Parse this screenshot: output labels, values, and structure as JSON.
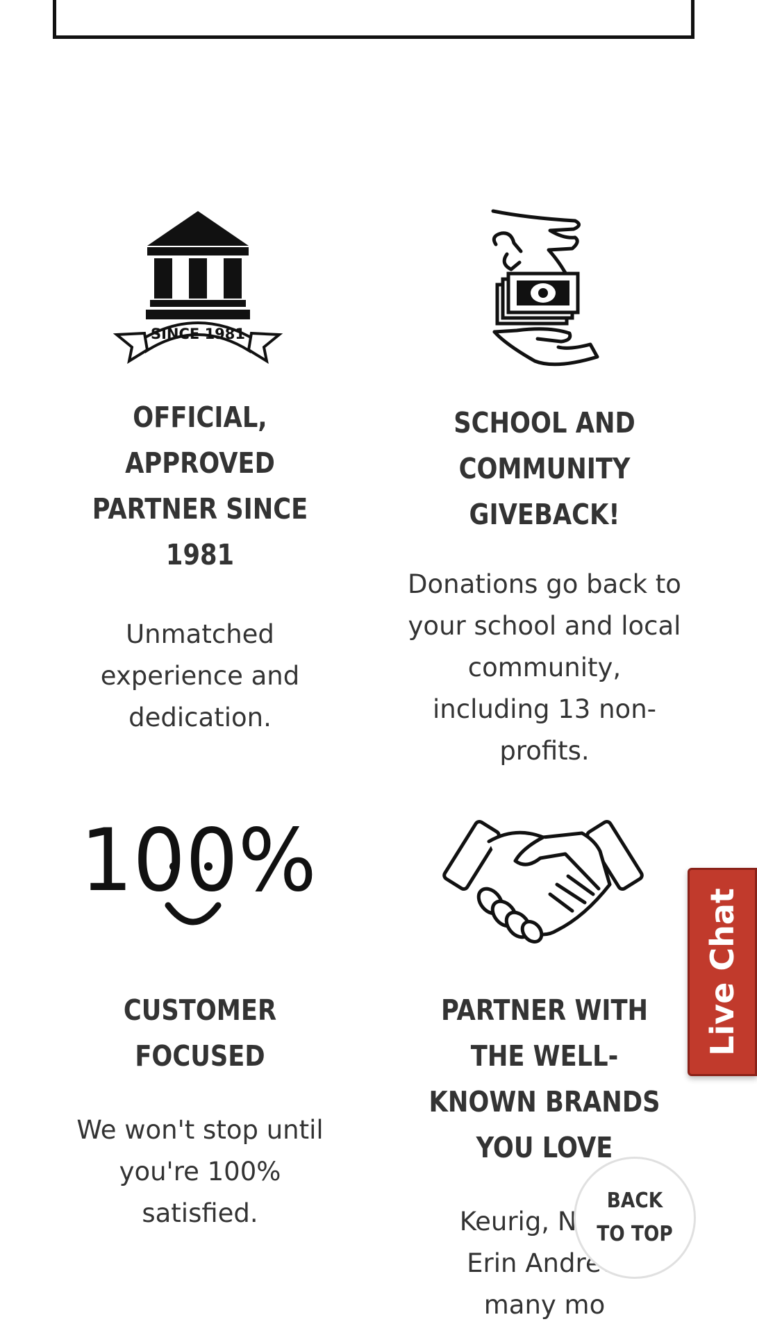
{
  "features": [
    {
      "icon": "bank-since-1981-icon",
      "badge_text": "SINCE 1981",
      "title": "OFFICIAL, APPROVED PARTNER SINCE 1981",
      "description": "Unmatched experience and dedication."
    },
    {
      "icon": "money-donation-hands-icon",
      "title": "SCHOOL AND COMMUNITY GIVEBACK!",
      "description": "Donations go back to your school and local community, including 13 non-profits."
    },
    {
      "icon": "hundred-percent-smile-icon",
      "icon_text": "100%",
      "title": "CUSTOMER FOCUSED",
      "description": "We won't stop until you're 100% satisfied."
    },
    {
      "icon": "handshake-icon",
      "title": "PARTNER WITH THE WELL-KNOWN BRANDS YOU LOVE",
      "description": "Keurig, North Erin Andrew many mo"
    }
  ],
  "live_chat": {
    "label": "Live Chat",
    "color": "#c13a2c"
  },
  "back_to_top": {
    "label": "BACK TO TOP"
  }
}
